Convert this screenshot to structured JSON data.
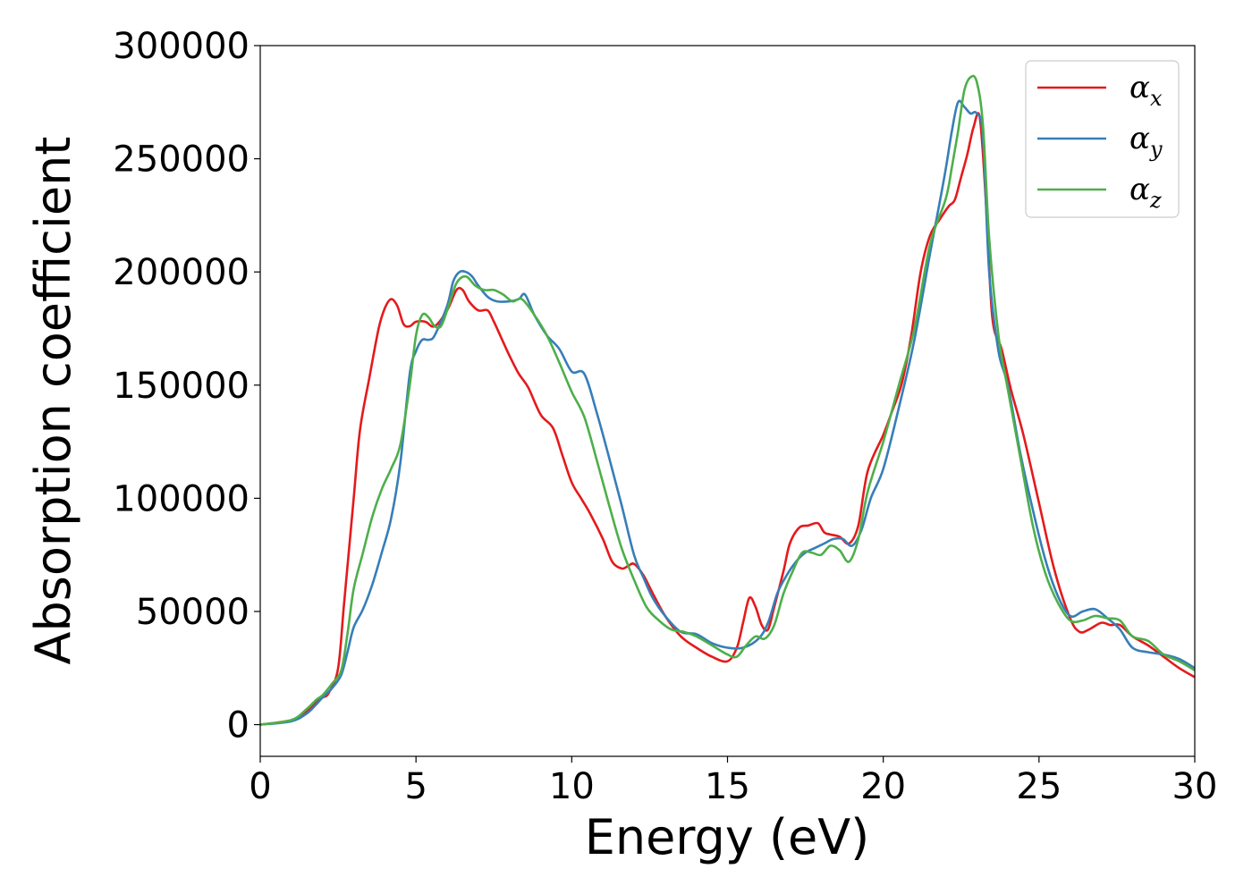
{
  "chart_data": {
    "type": "line",
    "title": "",
    "xlabel": "Energy (eV)",
    "ylabel": "Absorption coefficient",
    "xlim": [
      0,
      30
    ],
    "ylim": [
      -14000,
      300000
    ],
    "grid": false,
    "legend_position": "top-right",
    "x_ticks": [
      0,
      5,
      10,
      15,
      20,
      25,
      30
    ],
    "y_ticks": [
      0,
      50000,
      100000,
      150000,
      200000,
      250000,
      300000
    ],
    "x_tick_labels": [
      "0",
      "5",
      "10",
      "15",
      "20",
      "25",
      "30"
    ],
    "y_tick_labels": [
      "0",
      "50000",
      "100000",
      "150000",
      "200000",
      "250000",
      "300000"
    ],
    "series": [
      {
        "name": "α",
        "subscript": "x",
        "color": "#e41a1c",
        "x": [
          0,
          1.0,
          1.5,
          1.8,
          2.0,
          2.2,
          2.5,
          2.7,
          3.0,
          3.2,
          3.5,
          3.8,
          4.0,
          4.2,
          4.4,
          4.6,
          4.8,
          5.0,
          5.3,
          5.6,
          6.0,
          6.3,
          6.5,
          6.7,
          7.0,
          7.3,
          7.5,
          7.8,
          8.0,
          8.3,
          8.6,
          9.0,
          9.4,
          9.7,
          10.0,
          10.3,
          10.6,
          11.0,
          11.3,
          11.6,
          11.8,
          12.0,
          12.3,
          12.6,
          13.0,
          13.5,
          14.0,
          14.5,
          15.0,
          15.3,
          15.5,
          15.7,
          15.9,
          16.1,
          16.3,
          16.5,
          16.8,
          17.0,
          17.3,
          17.6,
          17.9,
          18.1,
          18.3,
          18.6,
          18.9,
          19.2,
          19.5,
          20.0,
          20.3,
          20.6,
          20.9,
          21.2,
          21.5,
          21.8,
          22.1,
          22.3,
          22.5,
          22.7,
          22.9,
          23.1,
          23.3,
          23.5,
          23.8,
          24.1,
          24.5,
          25.0,
          25.5,
          26.0,
          26.3,
          26.6,
          27.0,
          27.3,
          27.6,
          28.0,
          28.5,
          29.0,
          29.5,
          30.0
        ],
        "values": [
          0,
          2000,
          6000,
          10000,
          12000,
          14000,
          25000,
          55000,
          100000,
          130000,
          153000,
          175000,
          184000,
          188000,
          185000,
          177000,
          176000,
          178000,
          178000,
          176000,
          183000,
          192000,
          192000,
          187000,
          183000,
          183000,
          178000,
          169000,
          163000,
          155000,
          149000,
          137000,
          131000,
          119000,
          107000,
          100000,
          93000,
          82000,
          72000,
          69000,
          70000,
          71000,
          66000,
          58000,
          48000,
          39000,
          34000,
          30000,
          28000,
          34000,
          45000,
          56000,
          52000,
          44000,
          42000,
          52000,
          68000,
          80000,
          87000,
          88000,
          89000,
          85000,
          84000,
          83000,
          80000,
          88000,
          112000,
          128000,
          139000,
          151000,
          172000,
          200000,
          216000,
          223000,
          229000,
          232000,
          242000,
          252000,
          264000,
          268000,
          230000,
          180000,
          166000,
          148000,
          128000,
          98000,
          68000,
          47000,
          41000,
          42000,
          45000,
          44000,
          44000,
          39000,
          35000,
          30000,
          25000,
          21000
        ]
      },
      {
        "name": "α",
        "subscript": "y",
        "color": "#377eb8",
        "x": [
          0,
          1.0,
          1.5,
          1.8,
          2.0,
          2.3,
          2.6,
          2.8,
          3.0,
          3.3,
          3.6,
          3.9,
          4.2,
          4.5,
          4.8,
          5.0,
          5.2,
          5.4,
          5.6,
          6.0,
          6.2,
          6.4,
          6.6,
          6.8,
          7.0,
          7.3,
          7.6,
          8.0,
          8.3,
          8.5,
          8.8,
          9.2,
          9.6,
          10.0,
          10.4,
          10.8,
          11.2,
          11.6,
          12.0,
          12.3,
          12.6,
          13.0,
          13.5,
          14.0,
          14.5,
          15.0,
          15.5,
          16.0,
          16.3,
          16.6,
          16.9,
          17.2,
          17.5,
          17.8,
          18.1,
          18.4,
          18.7,
          19.0,
          19.3,
          19.6,
          20.0,
          20.5,
          21.0,
          21.5,
          21.8,
          22.0,
          22.2,
          22.4,
          22.6,
          22.8,
          23.0,
          23.2,
          23.4,
          23.7,
          24.0,
          24.4,
          24.8,
          25.2,
          25.6,
          26.0,
          26.4,
          26.8,
          27.2,
          27.6,
          28.0,
          28.5,
          29.0,
          29.5,
          30.0
        ],
        "values": [
          0,
          1500,
          5000,
          9000,
          12000,
          16000,
          22000,
          32000,
          43000,
          51000,
          62000,
          76000,
          91000,
          116000,
          155000,
          165000,
          170000,
          170000,
          172000,
          185000,
          196000,
          200000,
          200000,
          198000,
          194000,
          189000,
          187000,
          187000,
          188000,
          190000,
          181000,
          172000,
          166000,
          156000,
          155000,
          138000,
          118000,
          97000,
          75000,
          65000,
          56000,
          48000,
          41000,
          40000,
          36000,
          34000,
          34000,
          38000,
          45000,
          58000,
          66000,
          72000,
          76000,
          78000,
          80000,
          82000,
          82000,
          79000,
          86000,
          100000,
          113000,
          140000,
          170000,
          208000,
          230000,
          245000,
          262000,
          275000,
          273000,
          270000,
          270000,
          260000,
          200000,
          165000,
          150000,
          120000,
          95000,
          73000,
          57000,
          48000,
          50000,
          51000,
          47000,
          42000,
          34000,
          32000,
          31000,
          29000,
          25000
        ]
      },
      {
        "name": "α",
        "subscript": "z",
        "color": "#4daf4a",
        "x": [
          0,
          1.0,
          1.5,
          1.8,
          2.0,
          2.3,
          2.6,
          2.8,
          3.0,
          3.3,
          3.6,
          3.9,
          4.2,
          4.5,
          4.8,
          5.0,
          5.2,
          5.4,
          5.6,
          5.8,
          6.0,
          6.3,
          6.6,
          6.9,
          7.2,
          7.5,
          7.8,
          8.1,
          8.4,
          8.8,
          9.2,
          9.6,
          10.0,
          10.4,
          10.8,
          11.2,
          11.6,
          12.0,
          12.4,
          12.8,
          13.2,
          13.6,
          14.0,
          14.5,
          15.0,
          15.3,
          15.6,
          15.9,
          16.2,
          16.5,
          16.8,
          17.1,
          17.4,
          17.7,
          18.0,
          18.3,
          18.6,
          18.9,
          19.2,
          19.5,
          20.0,
          20.5,
          21.0,
          21.5,
          22.0,
          22.2,
          22.4,
          22.6,
          22.8,
          23.0,
          23.2,
          23.4,
          23.7,
          24.0,
          24.4,
          24.8,
          25.2,
          25.6,
          26.0,
          26.4,
          26.8,
          27.2,
          27.6,
          28.0,
          28.5,
          29.0,
          29.5,
          30.0
        ],
        "values": [
          0,
          2000,
          7000,
          11000,
          13000,
          18000,
          24000,
          40000,
          60000,
          76000,
          92000,
          104000,
          113000,
          124000,
          150000,
          172000,
          181000,
          180000,
          176000,
          176000,
          183000,
          195000,
          198000,
          194000,
          192000,
          192000,
          190000,
          187000,
          188000,
          181000,
          172000,
          160000,
          147000,
          136000,
          117000,
          97000,
          78000,
          64000,
          52000,
          46000,
          42000,
          41000,
          39000,
          35000,
          31000,
          30000,
          35000,
          39000,
          38000,
          44000,
          58000,
          68000,
          76000,
          76000,
          75000,
          79000,
          77000,
          72000,
          82000,
          103000,
          125000,
          150000,
          175000,
          212000,
          232000,
          246000,
          262000,
          280000,
          286000,
          284000,
          265000,
          215000,
          172000,
          148000,
          118000,
          88000,
          67000,
          54000,
          46000,
          46000,
          48000,
          47000,
          46000,
          39000,
          37000,
          31000,
          28000,
          24000
        ]
      }
    ]
  }
}
